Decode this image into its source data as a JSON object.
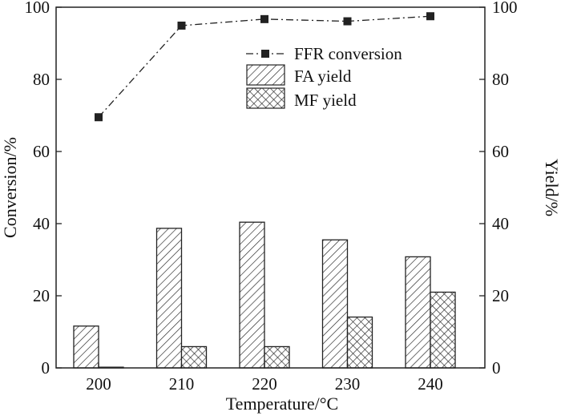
{
  "chart_data": {
    "type": "bar",
    "categories": [
      "200",
      "210",
      "220",
      "230",
      "240"
    ],
    "xlabel": "Temperature/°C",
    "ylabel_left": "Conversion/%",
    "ylabel_right": "Yield/%",
    "ylim": [
      0,
      100
    ],
    "yticks": [
      "0",
      "20",
      "40",
      "60",
      "80",
      "100"
    ],
    "grid": false,
    "legend_placement": "top-center",
    "series": [
      {
        "name": "FFR conversion",
        "kind": "line",
        "style": "dash-dot with square markers",
        "axis": "left",
        "values": [
          69.5,
          94.9,
          96.7,
          96.1,
          97.5
        ]
      },
      {
        "name": "FA yield",
        "kind": "bar",
        "pattern": "diagonal-hatch",
        "axis": "right",
        "values": [
          11.6,
          38.7,
          40.4,
          35.5,
          30.8
        ]
      },
      {
        "name": "MF yield",
        "kind": "bar",
        "pattern": "cross-hatch",
        "axis": "right",
        "values": [
          0.2,
          5.9,
          5.9,
          14.1,
          21.0
        ]
      }
    ]
  }
}
